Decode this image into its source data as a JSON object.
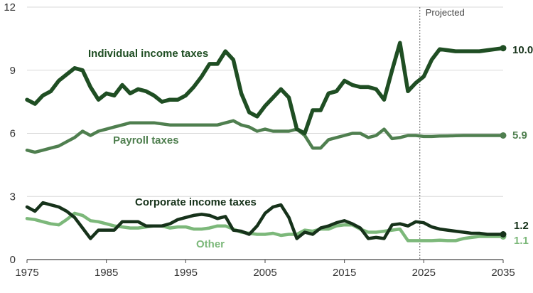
{
  "chart_data": {
    "type": "line",
    "title": "",
    "xlabel": "",
    "ylabel": "",
    "xlim": [
      1975,
      2035
    ],
    "ylim": [
      0,
      12
    ],
    "x_ticks": [
      "1975",
      "1985",
      "1995",
      "2005",
      "2015",
      "2025",
      "2035"
    ],
    "y_ticks": [
      "0",
      "3",
      "6",
      "9",
      "12"
    ],
    "grid": "horizontal",
    "projection_start": 2024.5,
    "projection_label": "Projected",
    "series": [
      {
        "name": "Individual income taxes",
        "color": "#1f4e23",
        "end_label": "10.0",
        "points": [
          [
            1975,
            7.6
          ],
          [
            1976,
            7.4
          ],
          [
            1977,
            7.8
          ],
          [
            1978,
            8.0
          ],
          [
            1979,
            8.5
          ],
          [
            1980,
            8.8
          ],
          [
            1981,
            9.1
          ],
          [
            1982,
            9.0
          ],
          [
            1983,
            8.2
          ],
          [
            1984,
            7.6
          ],
          [
            1985,
            7.9
          ],
          [
            1986,
            7.8
          ],
          [
            1987,
            8.3
          ],
          [
            1988,
            7.9
          ],
          [
            1989,
            8.1
          ],
          [
            1990,
            8.0
          ],
          [
            1991,
            7.8
          ],
          [
            1992,
            7.5
          ],
          [
            1993,
            7.6
          ],
          [
            1994,
            7.6
          ],
          [
            1995,
            7.8
          ],
          [
            1996,
            8.2
          ],
          [
            1997,
            8.7
          ],
          [
            1998,
            9.3
          ],
          [
            1999,
            9.3
          ],
          [
            2000,
            9.9
          ],
          [
            2001,
            9.5
          ],
          [
            2002,
            7.9
          ],
          [
            2003,
            7.0
          ],
          [
            2004,
            6.8
          ],
          [
            2005,
            7.3
          ],
          [
            2006,
            7.7
          ],
          [
            2007,
            8.1
          ],
          [
            2008,
            7.7
          ],
          [
            2009,
            6.2
          ],
          [
            2010,
            6.0
          ],
          [
            2011,
            7.1
          ],
          [
            2012,
            7.1
          ],
          [
            2013,
            7.9
          ],
          [
            2014,
            8.0
          ],
          [
            2015,
            8.5
          ],
          [
            2016,
            8.3
          ],
          [
            2017,
            8.2
          ],
          [
            2018,
            8.2
          ],
          [
            2019,
            8.1
          ],
          [
            2020,
            7.6
          ],
          [
            2021,
            9.0
          ],
          [
            2022,
            10.3
          ],
          [
            2023,
            8.0
          ],
          [
            2024,
            8.4
          ],
          [
            2025,
            8.7
          ],
          [
            2026,
            9.5
          ],
          [
            2027,
            10.0
          ],
          [
            2028,
            9.95
          ],
          [
            2029,
            9.9
          ],
          [
            2030,
            9.9
          ],
          [
            2031,
            9.9
          ],
          [
            2032,
            9.9
          ],
          [
            2033,
            9.95
          ],
          [
            2034,
            10.0
          ],
          [
            2035,
            10.05
          ]
        ]
      },
      {
        "name": "Payroll taxes",
        "color": "#4f7f4f",
        "end_label": "5.9",
        "points": [
          [
            1975,
            5.2
          ],
          [
            1976,
            5.1
          ],
          [
            1977,
            5.2
          ],
          [
            1978,
            5.3
          ],
          [
            1979,
            5.4
          ],
          [
            1980,
            5.6
          ],
          [
            1981,
            5.8
          ],
          [
            1982,
            6.1
          ],
          [
            1983,
            5.9
          ],
          [
            1984,
            6.1
          ],
          [
            1985,
            6.2
          ],
          [
            1986,
            6.3
          ],
          [
            1987,
            6.4
          ],
          [
            1988,
            6.5
          ],
          [
            1989,
            6.5
          ],
          [
            1990,
            6.5
          ],
          [
            1991,
            6.5
          ],
          [
            1992,
            6.45
          ],
          [
            1993,
            6.4
          ],
          [
            1994,
            6.4
          ],
          [
            1995,
            6.4
          ],
          [
            1996,
            6.4
          ],
          [
            1997,
            6.4
          ],
          [
            1998,
            6.4
          ],
          [
            1999,
            6.4
          ],
          [
            2000,
            6.5
          ],
          [
            2001,
            6.6
          ],
          [
            2002,
            6.4
          ],
          [
            2003,
            6.3
          ],
          [
            2004,
            6.1
          ],
          [
            2005,
            6.2
          ],
          [
            2006,
            6.1
          ],
          [
            2007,
            6.1
          ],
          [
            2008,
            6.1
          ],
          [
            2009,
            6.2
          ],
          [
            2010,
            5.9
          ],
          [
            2011,
            5.3
          ],
          [
            2012,
            5.3
          ],
          [
            2013,
            5.7
          ],
          [
            2014,
            5.8
          ],
          [
            2015,
            5.9
          ],
          [
            2016,
            6.0
          ],
          [
            2017,
            6.0
          ],
          [
            2018,
            5.8
          ],
          [
            2019,
            5.9
          ],
          [
            2020,
            6.2
          ],
          [
            2021,
            5.75
          ],
          [
            2022,
            5.8
          ],
          [
            2023,
            5.9
          ],
          [
            2024,
            5.9
          ],
          [
            2025,
            5.85
          ],
          [
            2026,
            5.85
          ],
          [
            2027,
            5.87
          ],
          [
            2028,
            5.88
          ],
          [
            2029,
            5.89
          ],
          [
            2030,
            5.9
          ],
          [
            2031,
            5.9
          ],
          [
            2032,
            5.9
          ],
          [
            2033,
            5.9
          ],
          [
            2034,
            5.9
          ],
          [
            2035,
            5.9
          ]
        ]
      },
      {
        "name": "Corporate income taxes",
        "color": "#16321a",
        "end_label": "1.2",
        "points": [
          [
            1975,
            2.5
          ],
          [
            1976,
            2.3
          ],
          [
            1977,
            2.7
          ],
          [
            1978,
            2.6
          ],
          [
            1979,
            2.5
          ],
          [
            1980,
            2.3
          ],
          [
            1981,
            2.0
          ],
          [
            1982,
            1.5
          ],
          [
            1983,
            1.0
          ],
          [
            1984,
            1.4
          ],
          [
            1985,
            1.4
          ],
          [
            1986,
            1.4
          ],
          [
            1987,
            1.8
          ],
          [
            1988,
            1.8
          ],
          [
            1989,
            1.8
          ],
          [
            1990,
            1.6
          ],
          [
            1991,
            1.6
          ],
          [
            1992,
            1.6
          ],
          [
            1993,
            1.7
          ],
          [
            1994,
            1.9
          ],
          [
            1995,
            2.0
          ],
          [
            1996,
            2.1
          ],
          [
            1997,
            2.15
          ],
          [
            1998,
            2.1
          ],
          [
            1999,
            1.95
          ],
          [
            2000,
            2.05
          ],
          [
            2001,
            1.4
          ],
          [
            2002,
            1.35
          ],
          [
            2003,
            1.2
          ],
          [
            2004,
            1.6
          ],
          [
            2005,
            2.2
          ],
          [
            2006,
            2.5
          ],
          [
            2007,
            2.6
          ],
          [
            2008,
            2.0
          ],
          [
            2009,
            1.0
          ],
          [
            2010,
            1.3
          ],
          [
            2011,
            1.2
          ],
          [
            2012,
            1.5
          ],
          [
            2013,
            1.6
          ],
          [
            2014,
            1.75
          ],
          [
            2015,
            1.85
          ],
          [
            2016,
            1.7
          ],
          [
            2017,
            1.5
          ],
          [
            2018,
            1.0
          ],
          [
            2019,
            1.05
          ],
          [
            2020,
            1.0
          ],
          [
            2021,
            1.65
          ],
          [
            2022,
            1.7
          ],
          [
            2023,
            1.6
          ],
          [
            2024,
            1.8
          ],
          [
            2025,
            1.75
          ],
          [
            2026,
            1.55
          ],
          [
            2027,
            1.45
          ],
          [
            2028,
            1.4
          ],
          [
            2029,
            1.35
          ],
          [
            2030,
            1.3
          ],
          [
            2031,
            1.25
          ],
          [
            2032,
            1.25
          ],
          [
            2033,
            1.2
          ],
          [
            2034,
            1.2
          ],
          [
            2035,
            1.2
          ]
        ]
      },
      {
        "name": "Other",
        "color": "#7cb87a",
        "end_label": "1.1",
        "points": [
          [
            1975,
            1.95
          ],
          [
            1976,
            1.9
          ],
          [
            1977,
            1.8
          ],
          [
            1978,
            1.7
          ],
          [
            1979,
            1.65
          ],
          [
            1980,
            1.9
          ],
          [
            1981,
            2.2
          ],
          [
            1982,
            2.1
          ],
          [
            1983,
            1.85
          ],
          [
            1984,
            1.8
          ],
          [
            1985,
            1.7
          ],
          [
            1986,
            1.6
          ],
          [
            1987,
            1.55
          ],
          [
            1988,
            1.5
          ],
          [
            1989,
            1.5
          ],
          [
            1990,
            1.55
          ],
          [
            1991,
            1.6
          ],
          [
            1992,
            1.6
          ],
          [
            1993,
            1.5
          ],
          [
            1994,
            1.55
          ],
          [
            1995,
            1.55
          ],
          [
            1996,
            1.45
          ],
          [
            1997,
            1.45
          ],
          [
            1998,
            1.5
          ],
          [
            1999,
            1.6
          ],
          [
            2000,
            1.6
          ],
          [
            2001,
            1.45
          ],
          [
            2002,
            1.3
          ],
          [
            2003,
            1.25
          ],
          [
            2004,
            1.2
          ],
          [
            2005,
            1.2
          ],
          [
            2006,
            1.25
          ],
          [
            2007,
            1.15
          ],
          [
            2008,
            1.2
          ],
          [
            2009,
            1.2
          ],
          [
            2010,
            1.4
          ],
          [
            2011,
            1.35
          ],
          [
            2012,
            1.45
          ],
          [
            2013,
            1.45
          ],
          [
            2014,
            1.6
          ],
          [
            2015,
            1.65
          ],
          [
            2016,
            1.65
          ],
          [
            2017,
            1.45
          ],
          [
            2018,
            1.3
          ],
          [
            2019,
            1.3
          ],
          [
            2020,
            1.35
          ],
          [
            2021,
            1.4
          ],
          [
            2022,
            1.45
          ],
          [
            2023,
            0.9
          ],
          [
            2024,
            0.9
          ],
          [
            2025,
            0.9
          ],
          [
            2026,
            0.9
          ],
          [
            2027,
            0.92
          ],
          [
            2028,
            0.9
          ],
          [
            2029,
            0.9
          ],
          [
            2030,
            1.0
          ],
          [
            2031,
            1.05
          ],
          [
            2032,
            1.1
          ],
          [
            2033,
            1.1
          ],
          [
            2034,
            1.1
          ],
          [
            2035,
            1.1
          ]
        ]
      }
    ]
  }
}
